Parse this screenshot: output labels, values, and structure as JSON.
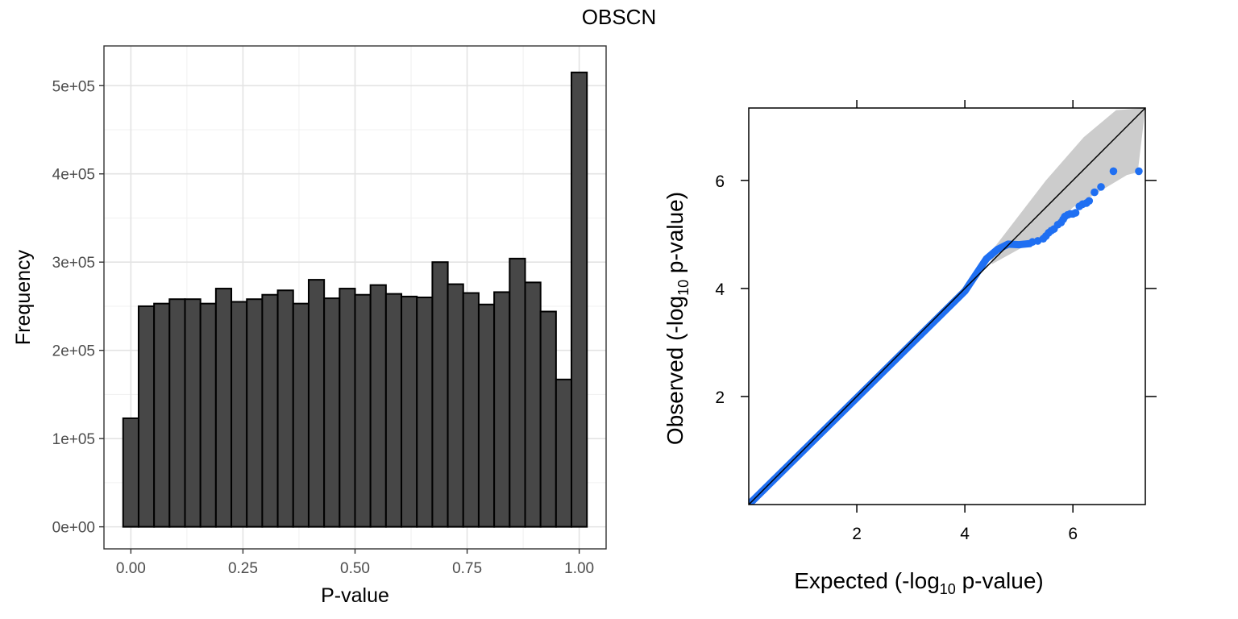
{
  "title": "OBSCN",
  "chart_data": [
    {
      "type": "bar",
      "subtype": "histogram",
      "xlabel": "P-value",
      "ylabel": "Frequency",
      "xlim": [
        -0.06,
        1.06
      ],
      "ylim": [
        -25000,
        545000
      ],
      "xticks": [
        0,
        0.25,
        0.5,
        0.75,
        1
      ],
      "xtick_labels": [
        "0.00",
        "0.25",
        "0.50",
        "0.75",
        "1.00"
      ],
      "yticks": [
        0,
        100000,
        200000,
        300000,
        400000,
        500000
      ],
      "ytick_labels": [
        "0e+00",
        "1e+05",
        "2e+05",
        "3e+05",
        "4e+05",
        "5e+05"
      ],
      "grid": true,
      "bar_color": "#474747",
      "bin_width": 0.0345,
      "bin_centers": [
        0.0,
        0.0345,
        0.069,
        0.1034,
        0.1379,
        0.1724,
        0.2069,
        0.2414,
        0.2759,
        0.3103,
        0.3448,
        0.3793,
        0.4138,
        0.4483,
        0.4828,
        0.5172,
        0.5517,
        0.5862,
        0.6207,
        0.6552,
        0.6897,
        0.7241,
        0.7586,
        0.7931,
        0.8276,
        0.8621,
        0.8966,
        0.931,
        0.9655,
        1.0
      ],
      "values": [
        123000,
        250000,
        253000,
        258000,
        258000,
        253000,
        270000,
        255000,
        258000,
        263000,
        268000,
        253000,
        280000,
        259000,
        270000,
        263000,
        274000,
        264000,
        261000,
        260000,
        300000,
        275000,
        265000,
        252000,
        266000,
        304000,
        277000,
        244000,
        167000,
        515000
      ]
    },
    {
      "type": "scatter",
      "subtype": "qq-plot",
      "xlabel": "Expected (-log10 p-value)",
      "ylabel": "Observed (-log10 p-value)",
      "xlim": [
        0,
        7.34
      ],
      "ylim": [
        0,
        7.34
      ],
      "xticks": [
        2,
        4,
        6
      ],
      "yticks": [
        2,
        4,
        6
      ],
      "grid": false,
      "point_color": "#1f6ff2",
      "band_color": "#cccccc",
      "diagonal_line": [
        [
          0,
          0
        ],
        [
          7.34,
          7.34
        ]
      ],
      "points_dense_segments": [
        [
          0,
          0
        ],
        [
          4.0,
          3.95
        ],
        [
          4.2,
          4.25
        ],
        [
          4.4,
          4.55
        ],
        [
          4.6,
          4.72
        ],
        [
          4.8,
          4.82
        ],
        [
          5.0,
          4.81
        ],
        [
          5.2,
          4.83
        ]
      ],
      "points_tail": [
        [
          5.25,
          4.86
        ],
        [
          5.35,
          4.88
        ],
        [
          5.45,
          4.92
        ],
        [
          5.5,
          4.97
        ],
        [
          5.55,
          5.03
        ],
        [
          5.6,
          5.07
        ],
        [
          5.65,
          5.1
        ],
        [
          5.72,
          5.18
        ],
        [
          5.78,
          5.22
        ],
        [
          5.82,
          5.28
        ],
        [
          5.85,
          5.33
        ],
        [
          5.9,
          5.36
        ],
        [
          5.95,
          5.38
        ],
        [
          6.0,
          5.38
        ],
        [
          6.05,
          5.4
        ],
        [
          6.12,
          5.52
        ],
        [
          6.18,
          5.56
        ],
        [
          6.25,
          5.58
        ],
        [
          6.3,
          5.62
        ],
        [
          6.4,
          5.78
        ],
        [
          6.52,
          5.88
        ],
        [
          6.75,
          6.17
        ],
        [
          7.22,
          6.17
        ]
      ],
      "confidence_band_upper": [
        [
          4.5,
          4.7
        ],
        [
          5.5,
          6.0
        ],
        [
          6.2,
          6.8
        ],
        [
          6.8,
          7.3
        ],
        [
          7.34,
          7.34
        ]
      ],
      "confidence_band_lower": [
        [
          4.5,
          4.45
        ],
        [
          5.5,
          5.0
        ],
        [
          6.0,
          5.5
        ],
        [
          6.5,
          5.8
        ],
        [
          7.0,
          6.1
        ],
        [
          7.2,
          6.15
        ]
      ]
    }
  ]
}
